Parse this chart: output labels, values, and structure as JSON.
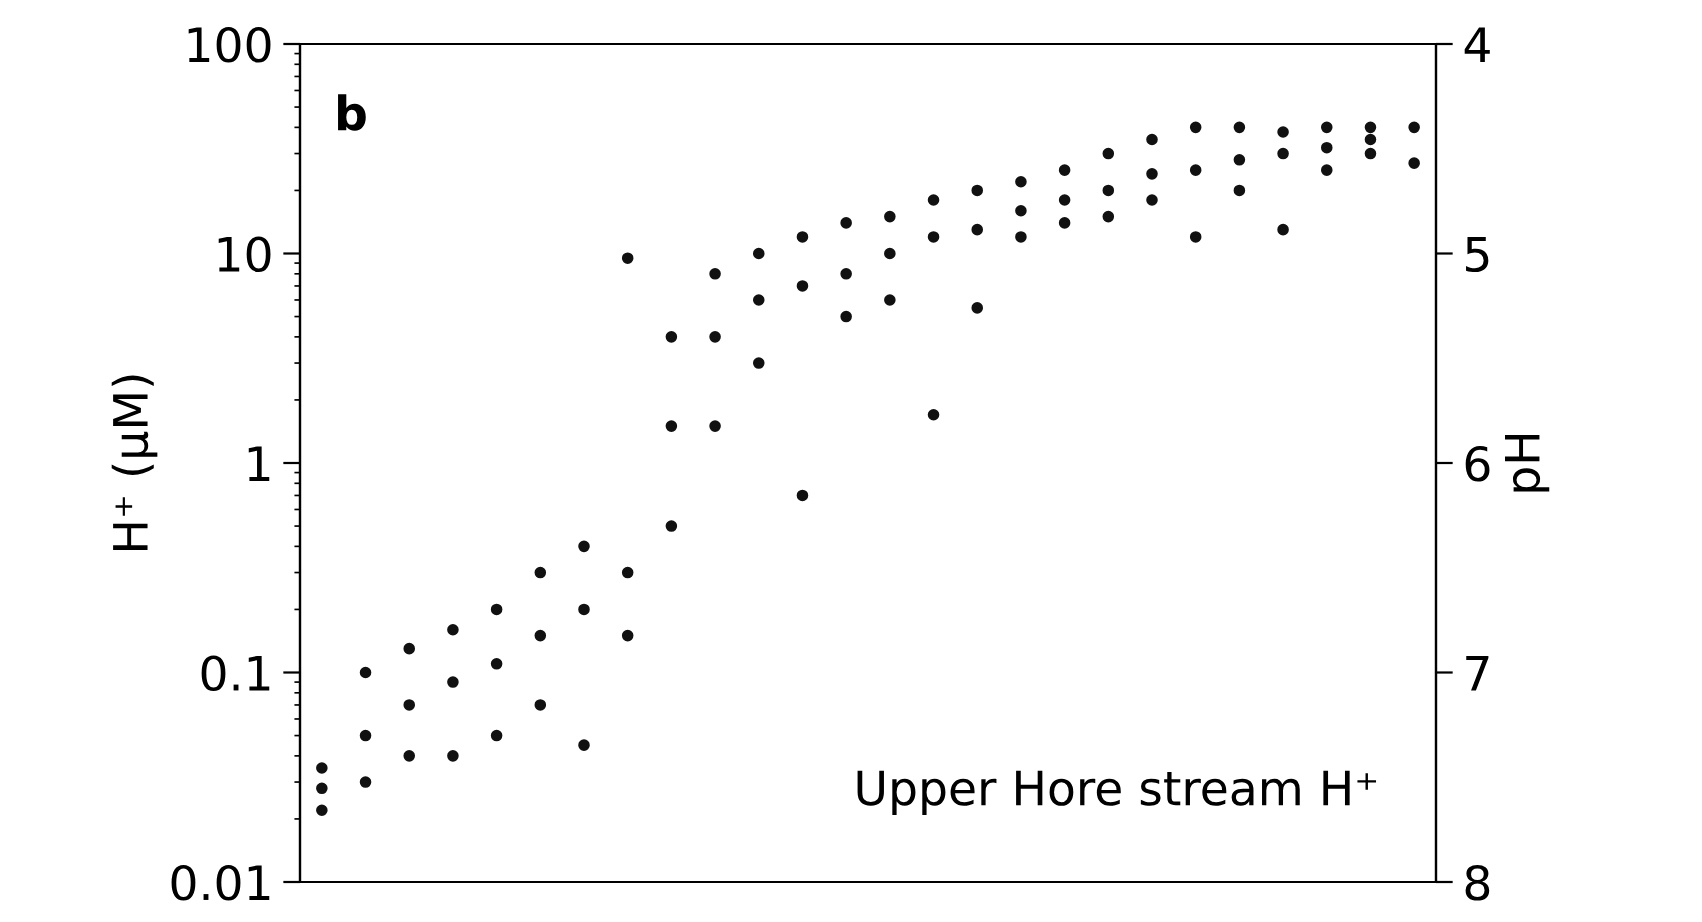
{
  "chart_data": {
    "type": "scatter",
    "ylabel": "H⁺ (μM)",
    "y2label": "pH",
    "annotations": [
      "b",
      "Upper Hore stream H⁺"
    ],
    "categories": [
      null,
      null,
      null,
      null,
      null,
      null,
      null,
      null,
      null,
      null,
      null,
      null,
      null,
      null,
      null,
      null,
      null,
      null,
      null,
      null,
      null,
      null,
      null,
      null,
      null,
      null
    ],
    "series": [
      {
        "color": "#111111",
        "values": [
          0.022,
          0.03,
          0.04,
          0.04,
          0.05,
          0.07,
          0.045,
          0.15,
          0.5,
          1.5,
          3,
          0.7,
          5,
          6,
          1.7,
          5.5,
          12,
          14,
          15,
          18,
          12,
          20,
          13,
          25,
          30,
          27
        ]
      },
      {
        "color": "#111111",
        "values": [
          0.028,
          0.05,
          0.07,
          0.09,
          0.11,
          0.15,
          0.2,
          0.3,
          1.5,
          4,
          6,
          7,
          8,
          10,
          12,
          13,
          16,
          18,
          20,
          24,
          25,
          28,
          30,
          32,
          35,
          40
        ]
      },
      {
        "color": "#111111",
        "values": [
          0.035,
          0.1,
          0.13,
          0.16,
          0.2,
          0.3,
          0.4,
          9.5,
          4,
          8,
          10,
          12,
          14,
          15,
          18,
          20,
          22,
          25,
          30,
          35,
          40,
          40,
          38,
          40,
          40,
          null
        ]
      }
    ],
    "log": "y",
    "ylim": [
      0.01,
      100
    ],
    "yticks": [
      0.01,
      0.1,
      1,
      10,
      100
    ],
    "y2lim": [
      8,
      4
    ],
    "y2ticks": [
      8,
      7,
      6,
      5,
      4
    ],
    "marker": "circle",
    "grid": false,
    "legend": false
  }
}
